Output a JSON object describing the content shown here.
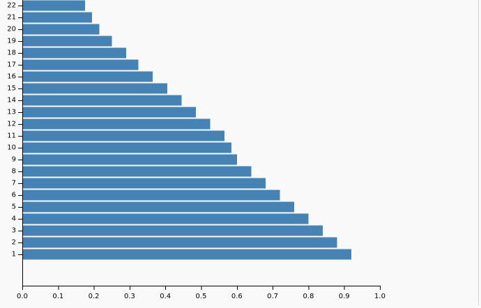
{
  "chart_data": {
    "type": "bar",
    "orientation": "horizontal",
    "color": "#4682b4",
    "categories": [
      "1",
      "2",
      "3",
      "4",
      "5",
      "6",
      "7",
      "8",
      "9",
      "10",
      "11",
      "12",
      "13",
      "14",
      "15",
      "16",
      "17",
      "18",
      "19",
      "20",
      "21",
      "22"
    ],
    "values": [
      0.92,
      0.88,
      0.84,
      0.8,
      0.76,
      0.72,
      0.68,
      0.64,
      0.6,
      0.585,
      0.565,
      0.525,
      0.485,
      0.445,
      0.405,
      0.365,
      0.325,
      0.29,
      0.25,
      0.215,
      0.195,
      0.175
    ],
    "xlim": [
      0,
      1.0
    ],
    "x_ticks": [
      "0.0",
      "0.1",
      "0.2",
      "0.3",
      "0.4",
      "0.5",
      "0.6",
      "0.7",
      "0.8",
      "0.9",
      "1.0"
    ],
    "title": "",
    "xlabel": "",
    "ylabel": "",
    "grid": false,
    "legend": "none"
  }
}
